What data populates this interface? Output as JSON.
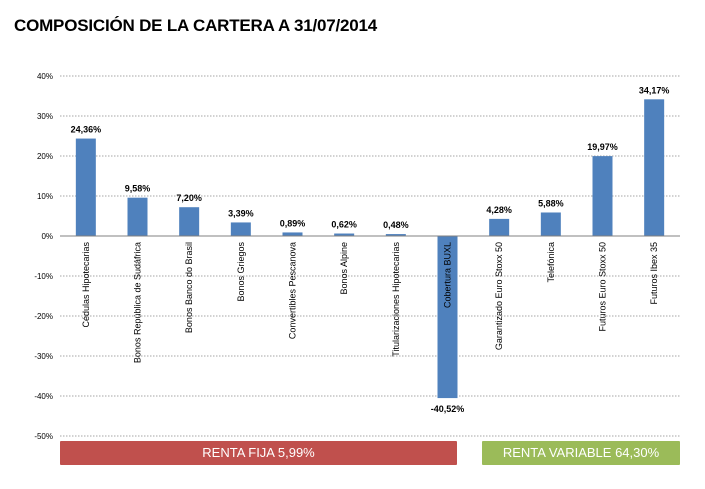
{
  "colors": {
    "bar": "#4f81bd",
    "fija_band": "#c0504d",
    "variable_band": "#9bbb59",
    "grid": "#a6a6a6"
  },
  "chart_data": {
    "type": "bar",
    "title": "COMPOSICIÓN DE LA CARTERA A 31/07/2014",
    "xlabel": "",
    "ylabel": "",
    "ylim": [
      -50,
      40
    ],
    "yticks": [
      40,
      30,
      20,
      10,
      0,
      -10,
      -20,
      -30,
      -40,
      -50
    ],
    "ytick_labels": [
      "40%",
      "30%",
      "20%",
      "10%",
      "0%",
      "-10%",
      "-20%",
      "-30%",
      "-40%",
      "-50%"
    ],
    "grid": true,
    "categories": [
      "Cédulas Hipotecarias",
      "Bonos República de Sudáfrica",
      "Bonos Banco do Brasil",
      "Bonos Griegos",
      "Convertibles Pescanova",
      "Bonos Alpine",
      "Titularizaciones Hipotecarias",
      "Cobertura BUXL",
      "Garantizado Euro Stoxx 50",
      "Telefónica",
      "Futuros Euro Stoxx 50",
      "Futuros Ibex 35"
    ],
    "values": [
      24.36,
      9.58,
      7.2,
      3.39,
      0.89,
      0.62,
      0.48,
      -40.52,
      4.28,
      5.88,
      19.97,
      34.17
    ],
    "data_labels": [
      "24,36%",
      "9,58%",
      "7,20%",
      "3,39%",
      "0,89%",
      "0,62%",
      "0,48%",
      "-40,52%",
      "4,28%",
      "5,88%",
      "19,97%",
      "34,17%"
    ],
    "groups": [
      {
        "label": "RENTA FIJA 5,99%"
      },
      {
        "label": "RENTA VARIABLE 64,30%"
      }
    ]
  }
}
